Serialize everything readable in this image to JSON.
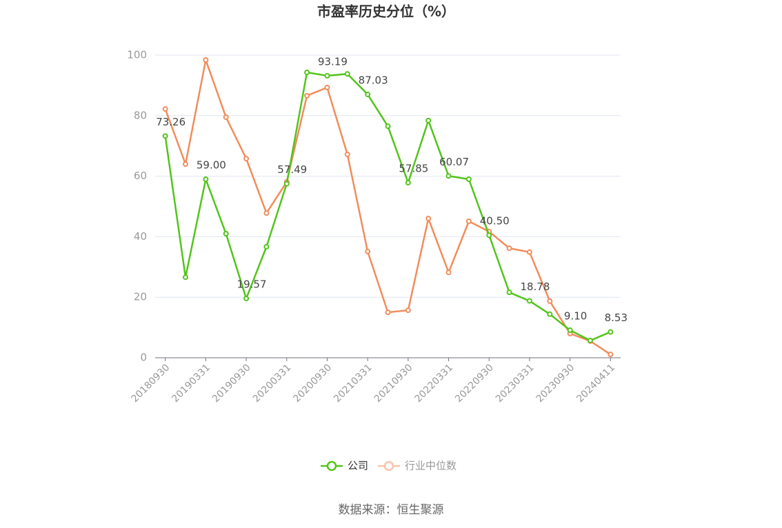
{
  "chart_data": {
    "type": "line",
    "title": "市盈率历史分位（%）",
    "source": "数据来源：恒生聚源",
    "categories": [
      "20180930",
      null,
      "20190331",
      null,
      "20190930",
      null,
      "20200331",
      null,
      "20200930",
      null,
      "20210331",
      null,
      "20210930",
      null,
      "20220331",
      null,
      "20220930",
      null,
      "20230331",
      null,
      "20230930",
      null,
      "20240411"
    ],
    "series": [
      {
        "name": "公司",
        "color": "#52c41a",
        "values": [
          73.26,
          26.6,
          59.0,
          41.0,
          19.57,
          36.7,
          57.49,
          94.3,
          93.19,
          93.8,
          87.03,
          76.5,
          57.85,
          78.4,
          60.07,
          59.0,
          40.5,
          21.6,
          18.78,
          14.4,
          9.1,
          5.7,
          8.53
        ],
        "value_labels": [
          "73.26",
          null,
          "59.00",
          null,
          "19.57",
          null,
          "57.49",
          null,
          "93.19",
          null,
          "87.03",
          null,
          "57.85",
          null,
          "60.07",
          null,
          "40.50",
          null,
          "18.78",
          null,
          "9.10",
          null,
          "8.53"
        ]
      },
      {
        "name": "行业中位数",
        "color": "#f28c5a",
        "values": [
          82.2,
          64.0,
          98.4,
          79.5,
          65.8,
          47.8,
          58.1,
          86.6,
          89.3,
          67.2,
          35.1,
          15.0,
          15.7,
          46.0,
          28.2,
          45.1,
          41.7,
          36.2,
          34.9,
          18.7,
          8.0,
          5.5,
          1.1
        ]
      }
    ],
    "ylim": [
      0,
      100
    ],
    "yticks": [
      0,
      20,
      40,
      60,
      80,
      100
    ],
    "grid": true
  }
}
